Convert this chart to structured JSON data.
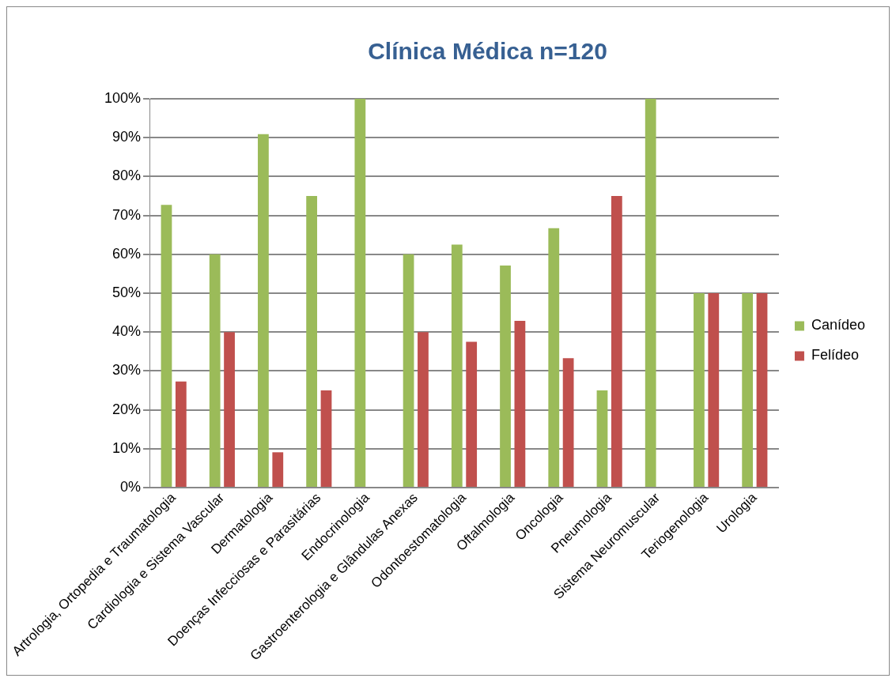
{
  "chart_data": {
    "type": "bar",
    "title": "Clínica Médica n=120",
    "categories": [
      "Artrologia, Ortopedia e Traumatologia",
      "Cardiologia e Sistema Vascular",
      "Dermatologia",
      "Doenças Infecciosas e Parasitárias",
      "Endocrinologia",
      "Gastroenterologia e Glândulas Anexas",
      "Odontoestomatologia",
      "Oftalmologia",
      "Oncologia",
      "Pneumologia",
      "Sistema Neuromuscular",
      "Teriogenologia",
      "Urologia"
    ],
    "series": [
      {
        "name": "Canídeo",
        "color": "#9bbb59",
        "values": [
          72.7,
          60,
          90.9,
          75,
          100,
          60,
          62.5,
          57.1,
          66.7,
          25,
          100,
          50,
          50
        ]
      },
      {
        "name": "Felídeo",
        "color": "#c0504d",
        "values": [
          27.3,
          40,
          9.1,
          25,
          0,
          40,
          37.5,
          42.9,
          33.3,
          75,
          0,
          50,
          50
        ]
      }
    ],
    "ylim": [
      0,
      100
    ],
    "yticks": [
      {
        "value": 0,
        "label": "0%"
      },
      {
        "value": 10,
        "label": "10%"
      },
      {
        "value": 20,
        "label": "20%"
      },
      {
        "value": 30,
        "label": "30%"
      },
      {
        "value": 40,
        "label": "40%"
      },
      {
        "value": 50,
        "label": "50%"
      },
      {
        "value": 60,
        "label": "60%"
      },
      {
        "value": 70,
        "label": "70%"
      },
      {
        "value": 80,
        "label": "80%"
      },
      {
        "value": 90,
        "label": "90%"
      },
      {
        "value": 100,
        "label": "100%"
      }
    ],
    "grid": "y",
    "legend": "right"
  }
}
